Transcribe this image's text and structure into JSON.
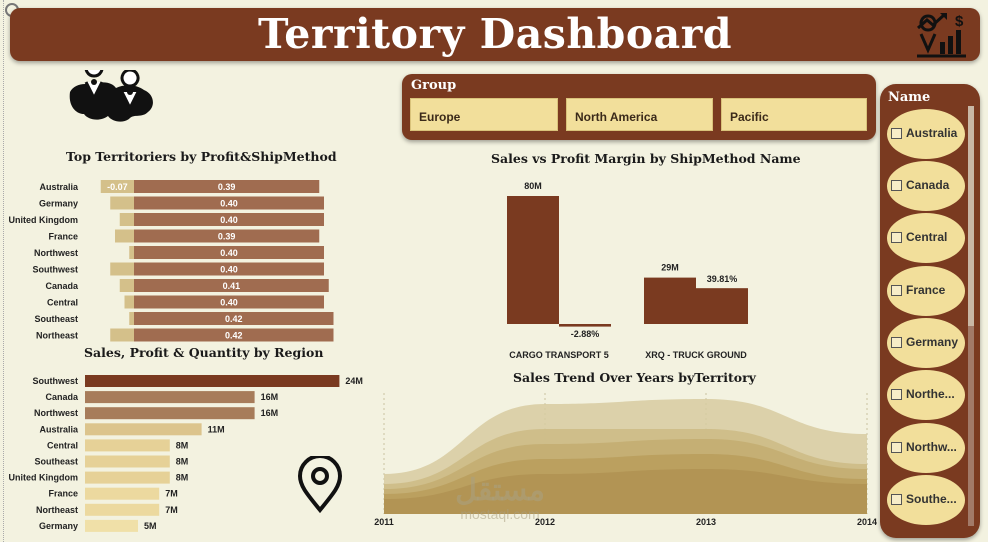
{
  "header": {
    "title": "Territory Dashboard",
    "icon": "growth-chart-icon",
    "color": "#7a3a20"
  },
  "decor": {
    "map_icon": "world-map-pins-icon",
    "pin_icon": "location-pin-icon"
  },
  "group_slicer": {
    "label": "Group",
    "options": [
      "Europe",
      "North America",
      "Pacific"
    ]
  },
  "name_slicer": {
    "label": "Name",
    "items": [
      "Australia",
      "Canada",
      "Central",
      "France",
      "Germany",
      "Northe...",
      "Northw...",
      "Southe..."
    ]
  },
  "chart_data": [
    {
      "type": "bar",
      "title": "Top Territoriers by Profit&ShipMethod",
      "orientation": "horizontal",
      "categories": [
        "Australia",
        "Germany",
        "United Kingdom",
        "France",
        "Northwest",
        "Southwest",
        "Canada",
        "Central",
        "Southeast",
        "Northeast"
      ],
      "series": [
        {
          "values": [
            -0.07,
            -0.05,
            -0.03,
            -0.04,
            -0.01,
            -0.05,
            -0.03,
            -0.02,
            -0.01,
            -0.05
          ],
          "labels": [
            "-0.07",
            "",
            "",
            "",
            "",
            "",
            "",
            "",
            "",
            ""
          ],
          "color": "#d4c08a"
        },
        {
          "values": [
            0.39,
            0.4,
            0.4,
            0.39,
            0.4,
            0.4,
            0.41,
            0.4,
            0.42,
            0.42
          ],
          "labels": [
            "0.39",
            "0.40",
            "0.40",
            "0.39",
            "0.40",
            "0.40",
            "0.41",
            "0.40",
            "0.42",
            "0.42"
          ],
          "color": "#a06c50"
        }
      ]
    },
    {
      "type": "bar",
      "title": "Sales, Profit & Quantity by Region",
      "orientation": "horizontal",
      "categories": [
        "Southwest",
        "Canada",
        "Northwest",
        "Australia",
        "Central",
        "Southeast",
        "United Kingdom",
        "France",
        "Northeast",
        "Germany"
      ],
      "values": [
        24,
        16,
        16,
        11,
        8,
        8,
        8,
        7,
        7,
        5
      ],
      "labels": [
        "24M",
        "16M",
        "16M",
        "11M",
        "8M",
        "8M",
        "8M",
        "7M",
        "7M",
        "5M"
      ],
      "colors": [
        "#7a3a20",
        "#a77c5a",
        "#a77c5a",
        "#dcc48c",
        "#e6d197",
        "#e6d197",
        "#e6d197",
        "#ecd99f",
        "#ecd99f",
        "#f0e0a8"
      ]
    },
    {
      "type": "bar",
      "title": "Sales vs Profit Margin by ShipMethod Name",
      "categories": [
        "CARGO TRANSPORT 5",
        "XRQ - TRUCK GROUND"
      ],
      "series": [
        {
          "values": [
            80,
            29
          ],
          "labels": [
            "80M",
            "29M"
          ],
          "color": "#7a3a20"
        },
        {
          "values": [
            -2.88,
            39.81
          ],
          "labels": [
            "-2.88%",
            "39.81%"
          ],
          "color": "#7a3a20"
        }
      ]
    },
    {
      "type": "area",
      "title": "Sales Trend Over Years byTerritory",
      "x": [
        "2011",
        "2012",
        "2013",
        "2014"
      ],
      "series": [
        {
          "values": [
            4,
            11,
            11.5,
            8
          ],
          "color": "#d7cba0"
        },
        {
          "values": [
            3,
            8.5,
            8.5,
            5
          ],
          "color": "#cdbb85"
        },
        {
          "values": [
            2.5,
            7,
            7.5,
            4.5
          ],
          "color": "#c3ad70"
        },
        {
          "values": [
            2,
            5.5,
            6,
            3.5
          ],
          "color": "#b89d5c"
        },
        {
          "values": [
            1.5,
            4,
            4.5,
            3
          ],
          "color": "#b09252"
        }
      ]
    }
  ],
  "watermark": {
    "arabic": "مستقل",
    "latin": "mostaql.com"
  }
}
